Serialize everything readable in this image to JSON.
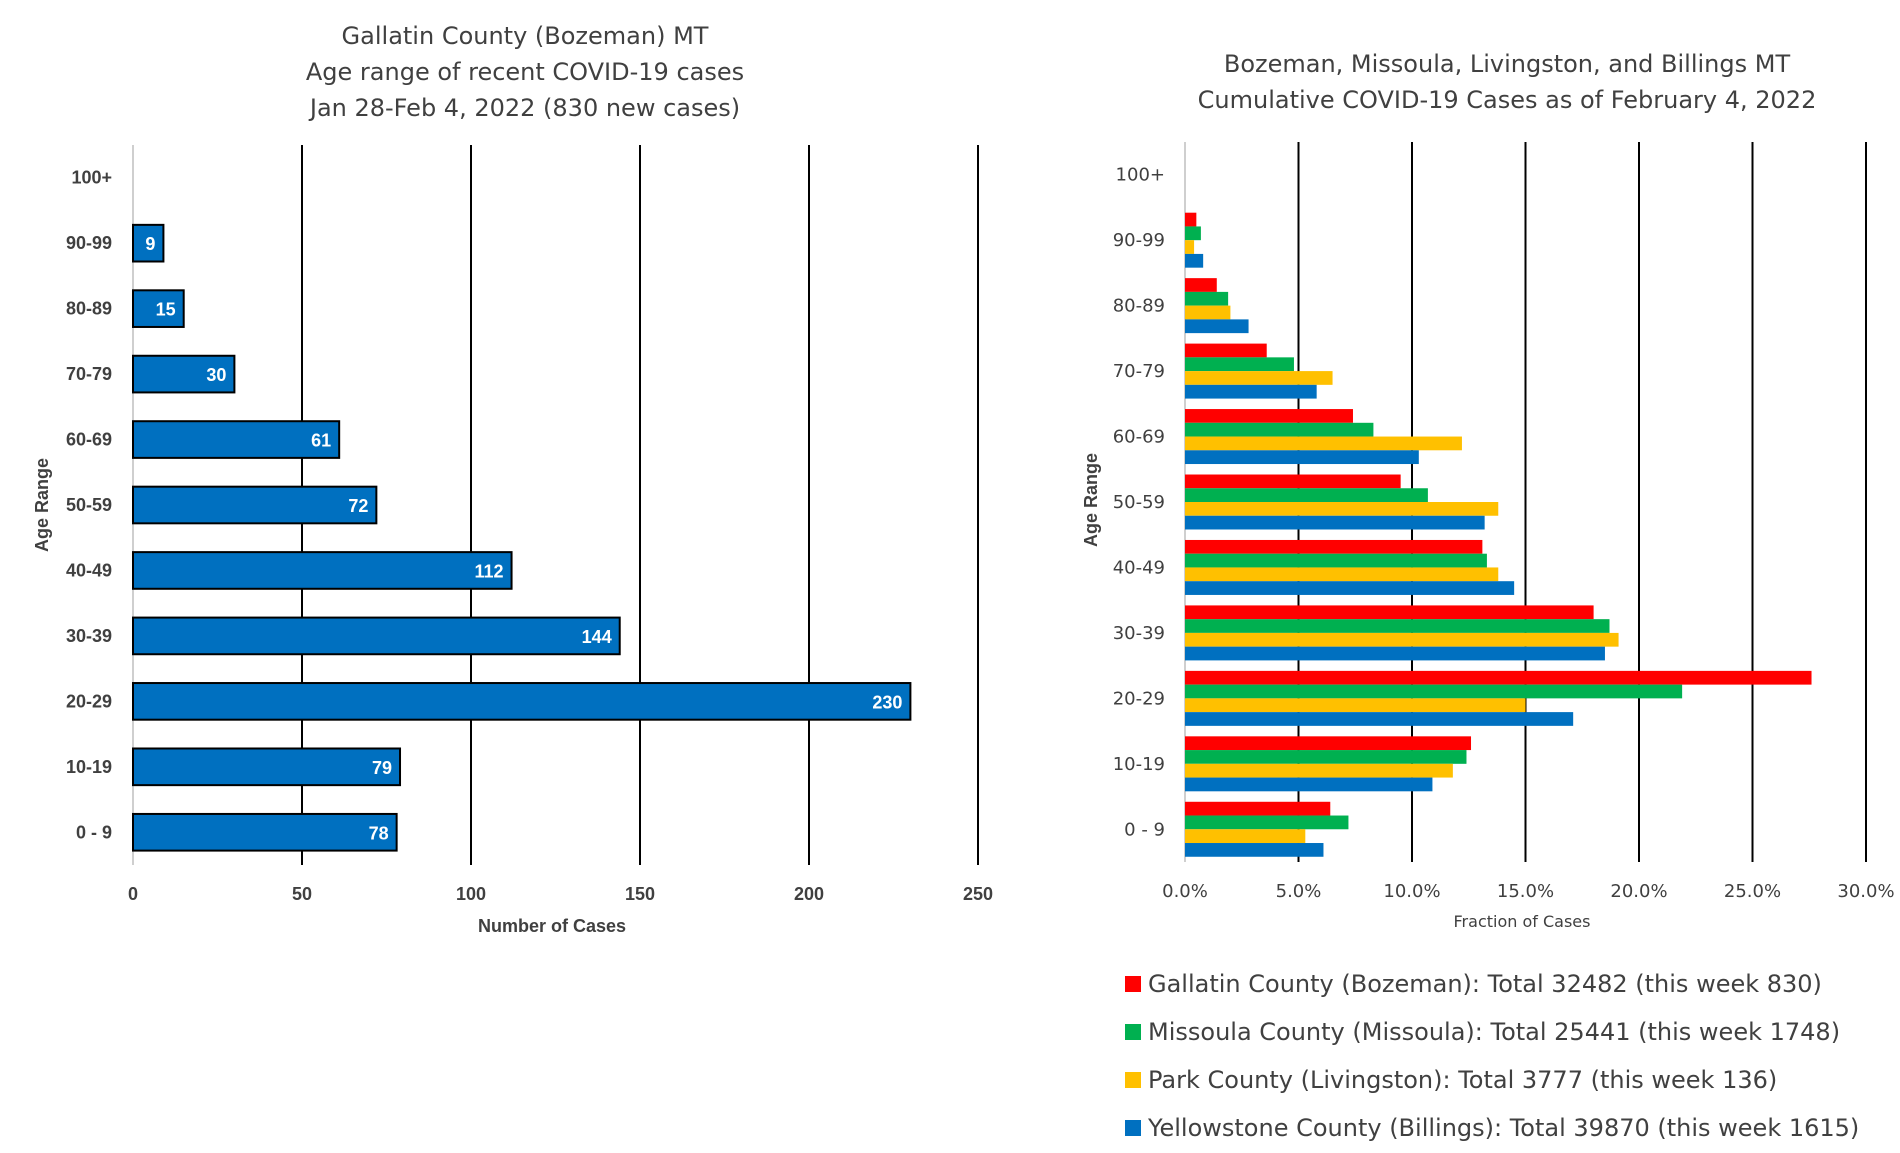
{
  "chart_data": [
    {
      "type": "bar",
      "orientation": "horizontal",
      "title_lines": [
        "Gallatin County (Bozeman) MT",
        "Age range of recent COVID-19 cases",
        "Jan 28-Feb 4, 2022 (830 new cases)"
      ],
      "categories": [
        "0 - 9",
        "10-19",
        "20-29",
        "30-39",
        "40-49",
        "50-59",
        "60-69",
        "70-79",
        "80-89",
        "90-99",
        "100+"
      ],
      "values": [
        78,
        79,
        230,
        144,
        112,
        72,
        61,
        30,
        15,
        9,
        null
      ],
      "data_labels": [
        "78",
        "79",
        "230",
        "144",
        "112",
        "72",
        "61",
        "30",
        "15",
        "9",
        ""
      ],
      "xlabel": "Number of Cases",
      "ylabel": "Age Range",
      "xlim": [
        0,
        250
      ],
      "xticks": [
        "0",
        "50",
        "100",
        "150",
        "200",
        "250"
      ],
      "bar_color": "#0070C0",
      "grid": "vertical lines"
    },
    {
      "type": "bar",
      "orientation": "horizontal",
      "title_lines": [
        "Bozeman, Missoula, Livingston, and Billings MT",
        "Cumulative COVID-19 Cases as of February 4, 2022"
      ],
      "categories": [
        "0 - 9",
        "10-19",
        "20-29",
        "30-39",
        "40-49",
        "50-59",
        "60-69",
        "70-79",
        "80-89",
        "90-99",
        "100+"
      ],
      "series": [
        {
          "name": "Gallatin County (Bozeman): Total 32482 (this week 830)",
          "color": "#FF0000",
          "values": [
            6.4,
            12.6,
            27.6,
            18.0,
            13.1,
            9.5,
            7.4,
            3.6,
            1.4,
            0.5,
            0.0
          ]
        },
        {
          "name": "Missoula County (Missoula): Total 25441 (this week 1748)",
          "color": "#00B050",
          "values": [
            7.2,
            12.4,
            21.9,
            18.7,
            13.3,
            10.7,
            8.3,
            4.8,
            1.9,
            0.7,
            0.0
          ]
        },
        {
          "name": "Park County (Livingston): Total 3777 (this week 136)",
          "color": "#FFC000",
          "values": [
            5.3,
            11.8,
            15.0,
            19.1,
            13.8,
            13.8,
            12.2,
            6.5,
            2.0,
            0.4,
            0.0
          ]
        },
        {
          "name": "Yellowstone County (Billings): Total 39870 (this week 1615)",
          "color": "#0070C0",
          "values": [
            6.1,
            10.9,
            17.1,
            18.5,
            14.5,
            13.2,
            10.3,
            5.8,
            2.8,
            0.8,
            0.0
          ]
        }
      ],
      "xlabel": "Fraction of Cases",
      "ylabel": "Age Range",
      "xlim": [
        0,
        30
      ],
      "xticks": [
        "0.0%",
        "5.0%",
        "10.0%",
        "15.0%",
        "20.0%",
        "25.0%",
        "30.0%"
      ],
      "legend_position": "bottom",
      "grid": "vertical lines"
    }
  ]
}
